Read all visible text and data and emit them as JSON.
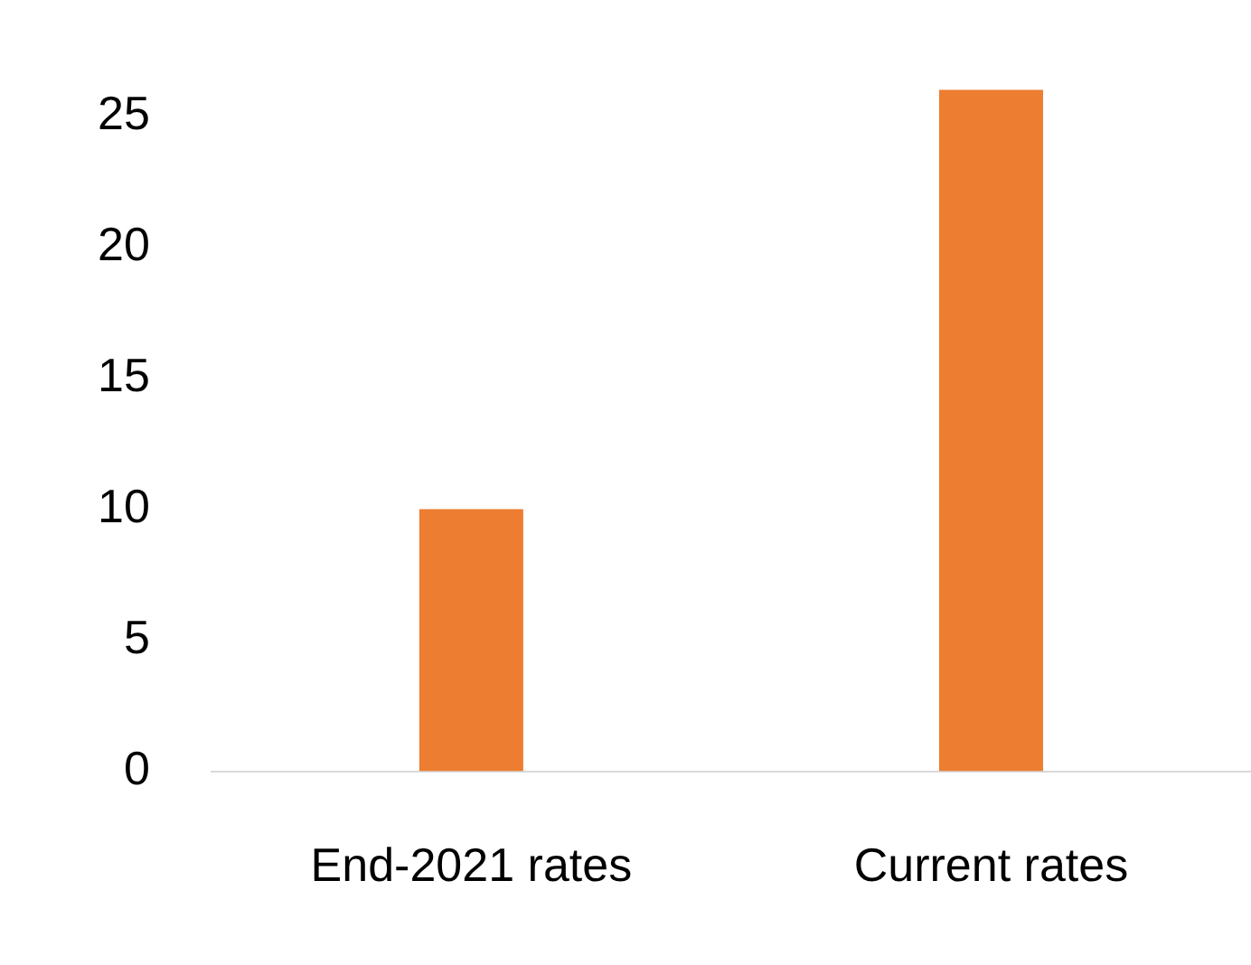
{
  "chart_data": {
    "type": "bar",
    "categories": [
      "End-2021 rates",
      "Current rates"
    ],
    "series": [
      {
        "color": "#ed7d31",
        "values": [
          10,
          26
        ]
      }
    ],
    "ylim": [
      0,
      26
    ],
    "yticks": [
      0,
      5,
      10,
      15,
      20,
      25
    ],
    "grid": false,
    "legend": false
  }
}
